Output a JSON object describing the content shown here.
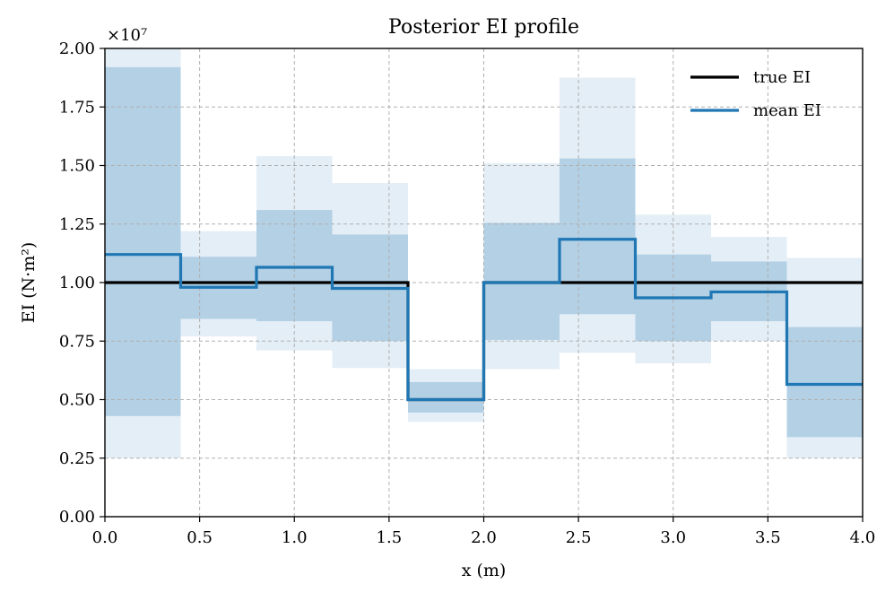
{
  "chart_data": {
    "type": "line",
    "title": "Posterior EI profile",
    "xlabel": "x (m)",
    "ylabel": "EI (N·m²)",
    "y_scale_note": "×10⁷",
    "xlim": [
      0.0,
      4.0
    ],
    "ylim": [
      0.0,
      2.0
    ],
    "x_ticks": [
      "0.0",
      "0.5",
      "1.0",
      "1.5",
      "2.0",
      "2.5",
      "3.0",
      "3.5",
      "4.0"
    ],
    "y_ticks": [
      "0.00",
      "0.25",
      "0.50",
      "0.75",
      "1.00",
      "1.25",
      "1.50",
      "1.75",
      "2.00"
    ],
    "grid": true,
    "legend_position": "top-right",
    "segment_edges": [
      0.0,
      0.4,
      0.8,
      1.2,
      1.6,
      2.0,
      2.4,
      2.8,
      3.2,
      3.6,
      4.0
    ],
    "series": [
      {
        "name": "true EI",
        "color": "#000000",
        "values": [
          1.0,
          1.0,
          1.0,
          1.0,
          0.5,
          1.0,
          1.0,
          1.0,
          1.0,
          1.0
        ]
      },
      {
        "name": "mean EI",
        "color": "#1f77b4",
        "values": [
          1.12,
          0.98,
          1.065,
          0.975,
          0.5,
          1.0,
          1.185,
          0.935,
          0.96,
          0.565
        ]
      }
    ],
    "bands": [
      {
        "color": "#1f77b4",
        "opacity": 0.12,
        "lower": [
          0.25,
          0.77,
          0.71,
          0.635,
          0.405,
          0.63,
          0.7,
          0.655,
          0.75,
          0.25
        ],
        "upper": [
          2.0,
          1.22,
          1.54,
          1.425,
          0.63,
          1.51,
          1.875,
          1.29,
          1.195,
          1.105
        ]
      },
      {
        "color": "#1f77b4",
        "opacity": 0.25,
        "lower": [
          0.43,
          0.845,
          0.835,
          0.75,
          0.445,
          0.755,
          0.865,
          0.75,
          0.835,
          0.34
        ],
        "upper": [
          1.92,
          1.11,
          1.31,
          1.205,
          0.575,
          1.255,
          1.53,
          1.12,
          1.09,
          0.81
        ]
      }
    ]
  }
}
